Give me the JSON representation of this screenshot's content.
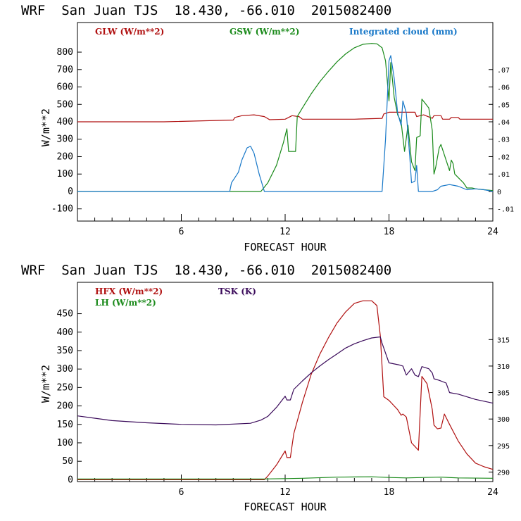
{
  "chart_data": [
    {
      "type": "line",
      "title": "WRF  San Juan TJS  18.430, -66.010  2015082400",
      "xlabel": "FORECAST HOUR",
      "ylabel": "W/m**2",
      "xlim": [
        0,
        24
      ],
      "xticks": [
        "6",
        "12",
        "18",
        "24"
      ],
      "ylim": [
        -170,
        970
      ],
      "yticks": [
        "-100",
        "0",
        "100",
        "200",
        "300",
        "400",
        "500",
        "600",
        "700",
        "800"
      ],
      "y2lim": [
        -0.017,
        0.097
      ],
      "y2ticks": [
        "-.01",
        "0",
        ".01",
        ".02",
        ".03",
        ".04",
        ".05",
        ".06",
        ".07"
      ],
      "series": [
        {
          "name": "GLW (W/m**2)",
          "color": "#b01010",
          "axis": "left",
          "points": [
            [
              0,
              400
            ],
            [
              5,
              400
            ],
            [
              9,
              410
            ],
            [
              9.1,
              425
            ],
            [
              9.5,
              435
            ],
            [
              10.2,
              440
            ],
            [
              10.8,
              430
            ],
            [
              11.1,
              412
            ],
            [
              12,
              415
            ],
            [
              12.2,
              425
            ],
            [
              12.4,
              435
            ],
            [
              12.8,
              430
            ],
            [
              13,
              415
            ],
            [
              16,
              415
            ],
            [
              17.6,
              420
            ],
            [
              17.7,
              445
            ],
            [
              18,
              455
            ],
            [
              19.5,
              455
            ],
            [
              19.6,
              430
            ],
            [
              20,
              440
            ],
            [
              20.5,
              420
            ],
            [
              20.6,
              435
            ],
            [
              21,
              435
            ],
            [
              21.1,
              415
            ],
            [
              21.5,
              415
            ],
            [
              21.6,
              425
            ],
            [
              22,
              425
            ],
            [
              22.1,
              415
            ],
            [
              24,
              415
            ]
          ]
        },
        {
          "name": "GSW (W/m**2)",
          "color": "#1a8a1a",
          "axis": "left",
          "points": [
            [
              0,
              0
            ],
            [
              10.6,
              0
            ],
            [
              11,
              50
            ],
            [
              11.5,
              150
            ],
            [
              11.9,
              280
            ],
            [
              12.1,
              360
            ],
            [
              12.2,
              230
            ],
            [
              12.5,
              230
            ],
            [
              12.6,
              230
            ],
            [
              12.7,
              430
            ],
            [
              13,
              480
            ],
            [
              13.5,
              560
            ],
            [
              14,
              630
            ],
            [
              14.5,
              690
            ],
            [
              15,
              745
            ],
            [
              15.5,
              790
            ],
            [
              16,
              825
            ],
            [
              16.5,
              845
            ],
            [
              17,
              850
            ],
            [
              17.3,
              848
            ],
            [
              17.6,
              825
            ],
            [
              17.8,
              750
            ],
            [
              18,
              520
            ],
            [
              18.1,
              740
            ],
            [
              18.3,
              540
            ],
            [
              18.5,
              440
            ],
            [
              18.7,
              400
            ],
            [
              18.9,
              230
            ],
            [
              19.1,
              380
            ],
            [
              19.3,
              170
            ],
            [
              19.5,
              120
            ],
            [
              19.6,
              310
            ],
            [
              19.8,
              320
            ],
            [
              19.9,
              530
            ],
            [
              20.3,
              480
            ],
            [
              20.5,
              350
            ],
            [
              20.6,
              100
            ],
            [
              20.7,
              140
            ],
            [
              20.9,
              250
            ],
            [
              21,
              270
            ],
            [
              21.1,
              240
            ],
            [
              21.3,
              180
            ],
            [
              21.5,
              120
            ],
            [
              21.6,
              180
            ],
            [
              21.7,
              160
            ],
            [
              21.8,
              100
            ],
            [
              22,
              80
            ],
            [
              22.3,
              50
            ],
            [
              22.5,
              20
            ],
            [
              22.8,
              20
            ],
            [
              23,
              15
            ],
            [
              23.5,
              10
            ],
            [
              24,
              5
            ]
          ]
        },
        {
          "name": "Integrated cloud (mm)",
          "color": "#1878c8",
          "axis": "right",
          "points": [
            [
              0,
              0
            ],
            [
              8.8,
              0
            ],
            [
              8.9,
              0.005
            ],
            [
              9.1,
              0.008
            ],
            [
              9.3,
              0.011
            ],
            [
              9.5,
              0.018
            ],
            [
              9.8,
              0.025
            ],
            [
              10,
              0.026
            ],
            [
              10.2,
              0.022
            ],
            [
              10.5,
              0.01
            ],
            [
              10.8,
              0
            ],
            [
              17.6,
              0
            ],
            [
              17.8,
              0.03
            ],
            [
              18,
              0.075
            ],
            [
              18.1,
              0.078
            ],
            [
              18.3,
              0.065
            ],
            [
              18.5,
              0.045
            ],
            [
              18.7,
              0.038
            ],
            [
              18.8,
              0.052
            ],
            [
              19,
              0.045
            ],
            [
              19.2,
              0.02
            ],
            [
              19.3,
              0.005
            ],
            [
              19.5,
              0.006
            ],
            [
              19.6,
              0.015
            ],
            [
              19.7,
              0
            ],
            [
              20.5,
              0
            ],
            [
              20.8,
              0.001
            ],
            [
              21,
              0.003
            ],
            [
              21.5,
              0.004
            ],
            [
              22,
              0.003
            ],
            [
              22.5,
              0.001
            ],
            [
              23,
              0.0015
            ],
            [
              23.5,
              0.001
            ],
            [
              24,
              0
            ]
          ]
        }
      ]
    },
    {
      "type": "line",
      "title": "WRF  San Juan TJS  18.430, -66.010  2015082400",
      "xlabel": "FORECAST HOUR",
      "ylabel": "W/m**2",
      "xlim": [
        0,
        24
      ],
      "xticks": [
        "6",
        "12",
        "18",
        "24"
      ],
      "ylim": [
        -5,
        535
      ],
      "yticks": [
        "0",
        "50",
        "100",
        "150",
        "200",
        "250",
        "300",
        "350",
        "400",
        "450"
      ],
      "y2lim": [
        288.2,
        325.8
      ],
      "y2ticks": [
        "290",
        "295",
        "300",
        "305",
        "310",
        "315"
      ],
      "series": [
        {
          "name": "HFX (W/m**2)",
          "color": "#b01010",
          "axis": "left",
          "points": [
            [
              0,
              0
            ],
            [
              10.8,
              0
            ],
            [
              11,
              10
            ],
            [
              11.5,
              40
            ],
            [
              12,
              78
            ],
            [
              12.1,
              60
            ],
            [
              12.3,
              60
            ],
            [
              12.5,
              125
            ],
            [
              13,
              210
            ],
            [
              13.5,
              285
            ],
            [
              14,
              340
            ],
            [
              14.5,
              385
            ],
            [
              15,
              425
            ],
            [
              15.5,
              455
            ],
            [
              16,
              478
            ],
            [
              16.5,
              485
            ],
            [
              17,
              485
            ],
            [
              17.3,
              472
            ],
            [
              17.5,
              390
            ],
            [
              17.7,
              225
            ],
            [
              18,
              215
            ],
            [
              18.3,
              200
            ],
            [
              18.5,
              190
            ],
            [
              18.7,
              175
            ],
            [
              18.8,
              178
            ],
            [
              19,
              170
            ],
            [
              19.3,
              100
            ],
            [
              19.5,
              90
            ],
            [
              19.7,
              80
            ],
            [
              19.9,
              280
            ],
            [
              20.2,
              260
            ],
            [
              20.5,
              190
            ],
            [
              20.6,
              148
            ],
            [
              20.8,
              138
            ],
            [
              21,
              140
            ],
            [
              21.2,
              178
            ],
            [
              21.5,
              150
            ],
            [
              22,
              105
            ],
            [
              22.5,
              70
            ],
            [
              23,
              45
            ],
            [
              23.5,
              35
            ],
            [
              24,
              28
            ]
          ]
        },
        {
          "name": "LH (W/m**2)",
          "color": "#1a8a1a",
          "axis": "left",
          "points": [
            [
              0,
              2
            ],
            [
              10.8,
              2
            ],
            [
              12,
              3
            ],
            [
              13,
              4
            ],
            [
              15,
              7
            ],
            [
              17,
              8
            ],
            [
              18,
              6
            ],
            [
              19,
              5
            ],
            [
              20,
              6
            ],
            [
              21,
              7
            ],
            [
              22,
              5
            ],
            [
              24,
              4
            ]
          ]
        },
        {
          "name": "TSK (K)",
          "color": "#3a0a5a",
          "axis": "right",
          "points": [
            [
              0,
              300.6
            ],
            [
              2,
              299.7
            ],
            [
              4,
              299.3
            ],
            [
              6,
              299.0
            ],
            [
              8,
              298.9
            ],
            [
              10,
              299.2
            ],
            [
              10.6,
              299.8
            ],
            [
              11,
              300.5
            ],
            [
              11.5,
              302.2
            ],
            [
              12,
              304.3
            ],
            [
              12.1,
              303.6
            ],
            [
              12.3,
              303.6
            ],
            [
              12.5,
              305.6
            ],
            [
              13,
              307.2
            ],
            [
              13.5,
              308.7
            ],
            [
              14,
              310.0
            ],
            [
              14.5,
              311.2
            ],
            [
              15,
              312.3
            ],
            [
              15.5,
              313.4
            ],
            [
              16,
              314.2
            ],
            [
              16.5,
              314.8
            ],
            [
              17,
              315.3
            ],
            [
              17.5,
              315.5
            ],
            [
              17.6,
              314.3
            ],
            [
              18,
              310.6
            ],
            [
              18.3,
              310.4
            ],
            [
              18.6,
              310.2
            ],
            [
              18.8,
              310.0
            ],
            [
              19,
              308.3
            ],
            [
              19.3,
              309.5
            ],
            [
              19.5,
              308.3
            ],
            [
              19.7,
              308.0
            ],
            [
              19.9,
              309.9
            ],
            [
              20.3,
              309.5
            ],
            [
              20.5,
              308.7
            ],
            [
              20.6,
              307.6
            ],
            [
              20.9,
              307.3
            ],
            [
              21.3,
              306.8
            ],
            [
              21.5,
              305.0
            ],
            [
              22,
              304.7
            ],
            [
              23,
              303.7
            ],
            [
              24,
              303.0
            ]
          ]
        }
      ]
    }
  ]
}
